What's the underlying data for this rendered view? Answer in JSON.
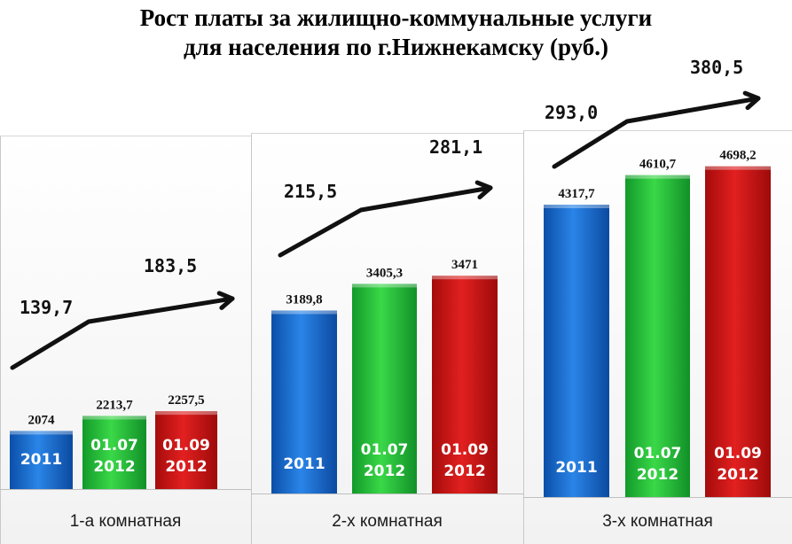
{
  "title_lines": [
    "Рост платы за жилищно-коммунальные  услуги",
    "для населения  по г.Нижнекамску (руб.)"
  ],
  "colors": {
    "blue": "#1f6fd0",
    "green": "#26c234",
    "red": "#cc1212",
    "arrow": "#111111"
  },
  "chart_data": {
    "type": "bar",
    "title": "Рост платы за жилищно-коммунальные  услуги для населения  по г.Нижнекамску (руб.)",
    "groups": [
      {
        "name": "1-а комнатная",
        "bars": [
          {
            "label_lines": [
              "2011"
            ],
            "value": 2074,
            "value_label": "2074",
            "color": "blue"
          },
          {
            "label_lines": [
              "01.07",
              "2012"
            ],
            "value": 2213.7,
            "value_label": "2213,7",
            "color": "green"
          },
          {
            "label_lines": [
              "01.09",
              "2012"
            ],
            "value": 2257.5,
            "value_label": "2257,5",
            "color": "red"
          }
        ],
        "increments": [
          "139,7",
          "183,5"
        ]
      },
      {
        "name": "2-х комнатная",
        "bars": [
          {
            "label_lines": [
              "2011"
            ],
            "value": 3189.8,
            "value_label": "3189,8",
            "color": "blue"
          },
          {
            "label_lines": [
              "01.07",
              "2012"
            ],
            "value": 3405.3,
            "value_label": "3405,3",
            "color": "green"
          },
          {
            "label_lines": [
              "01.09",
              "2012"
            ],
            "value": 3471,
            "value_label": "3471",
            "color": "red"
          }
        ],
        "increments": [
          "215,5",
          "281,1"
        ]
      },
      {
        "name": "3-х комнатная",
        "bars": [
          {
            "label_lines": [
              "2011"
            ],
            "value": 4317.7,
            "value_label": "4317,7",
            "color": "blue"
          },
          {
            "label_lines": [
              "01.07",
              "2012"
            ],
            "value": 4610.7,
            "value_label": "4610,7",
            "color": "green"
          },
          {
            "label_lines": [
              "01.09",
              "2012"
            ],
            "value": 4698.2,
            "value_label": "4698,2",
            "color": "red"
          }
        ],
        "increments": [
          "293,0",
          "380,5"
        ]
      }
    ]
  }
}
